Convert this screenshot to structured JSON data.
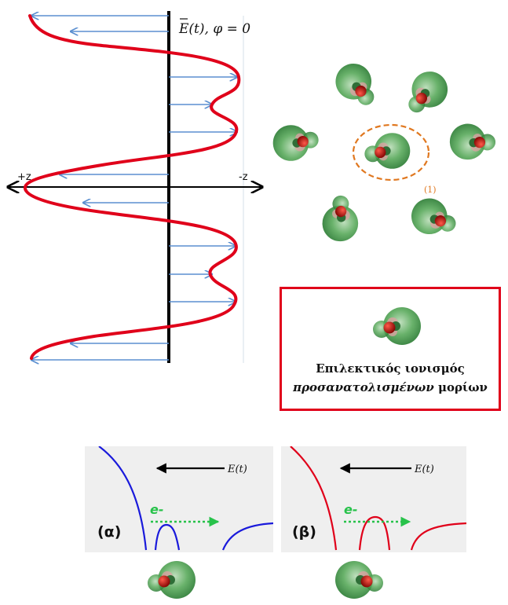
{
  "field_plot": {
    "title": "E(t), φ = 0",
    "left_axis_label": "+z",
    "right_axis_label": "-z"
  },
  "molecules_cluster": {
    "selected_label": "(1)"
  },
  "caption_box": {
    "line1": "Επιλεκτικός ιονισμός",
    "line2_italic": "προσανατολισμένων",
    "line2_rest": " μορίων"
  },
  "potential_panels": [
    {
      "tag": "(α)",
      "field_label": "E(t)",
      "electron_label": "e-",
      "curve_color": "#1a1adb"
    },
    {
      "tag": "(β)",
      "field_label": "E(t)",
      "electron_label": "e-",
      "curve_color": "#e0001a"
    }
  ],
  "colors": {
    "wave": "#e0001a",
    "arrows": "#5b8fd0",
    "orbital": "#3f9a48",
    "atom_red": "#c1120e",
    "electron_arrow": "#27c24a",
    "highlight_ring": "#e07820"
  }
}
